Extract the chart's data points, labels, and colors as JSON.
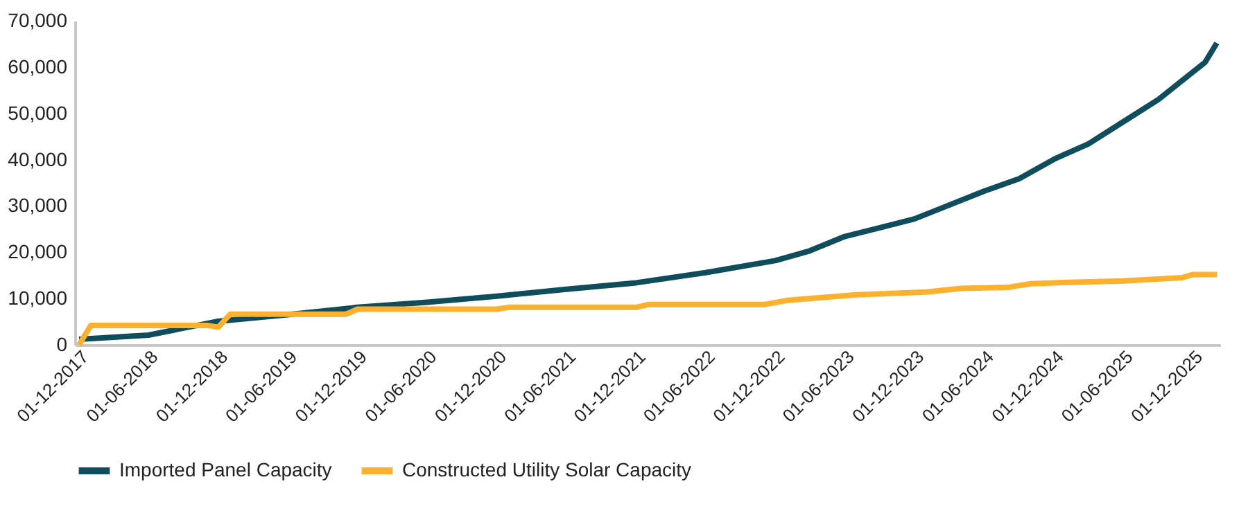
{
  "chart_data": {
    "type": "line",
    "xlim": [
      "2017-11-20",
      "2026-02-10"
    ],
    "xticks": [
      {
        "value": "2017-12-01",
        "label": "01-12-2017"
      },
      {
        "value": "2018-06-01",
        "label": "01-06-2018"
      },
      {
        "value": "2018-12-01",
        "label": "01-12-2018"
      },
      {
        "value": "2019-06-01",
        "label": "01-06-2019"
      },
      {
        "value": "2019-12-01",
        "label": "01-12-2019"
      },
      {
        "value": "2020-06-01",
        "label": "01-06-2020"
      },
      {
        "value": "2020-12-01",
        "label": "01-12-2020"
      },
      {
        "value": "2021-06-01",
        "label": "01-06-2021"
      },
      {
        "value": "2021-12-01",
        "label": "01-12-2021"
      },
      {
        "value": "2022-06-01",
        "label": "01-06-2022"
      },
      {
        "value": "2022-12-01",
        "label": "01-12-2022"
      },
      {
        "value": "2023-06-01",
        "label": "01-06-2023"
      },
      {
        "value": "2023-12-01",
        "label": "01-12-2023"
      },
      {
        "value": "2024-06-01",
        "label": "01-06-2024"
      },
      {
        "value": "2024-12-01",
        "label": "01-12-2024"
      },
      {
        "value": "2025-06-01",
        "label": "01-06-2025"
      },
      {
        "value": "2025-12-01",
        "label": "01-12-2025"
      }
    ],
    "ylim": [
      0,
      70000
    ],
    "yticks": [
      {
        "value": 0,
        "label": "0"
      },
      {
        "value": 10000,
        "label": "10,000"
      },
      {
        "value": 20000,
        "label": "20,000"
      },
      {
        "value": 30000,
        "label": "30,000"
      },
      {
        "value": 40000,
        "label": "40,000"
      },
      {
        "value": 50000,
        "label": "50,000"
      },
      {
        "value": 60000,
        "label": "60,000"
      },
      {
        "value": 70000,
        "label": "70,000"
      }
    ],
    "grid": false,
    "legend": "bottom",
    "marker": "none",
    "line_style": "solid",
    "series": [
      {
        "name": "Imported Panel Capacity",
        "color": "#0f4c5c",
        "x": [
          "2017-12-01",
          "2018-06-01",
          "2018-12-01",
          "2019-06-01",
          "2019-12-01",
          "2020-06-01",
          "2020-12-01",
          "2021-06-01",
          "2021-12-01",
          "2022-06-01",
          "2022-12-01",
          "2023-03-01",
          "2023-06-01",
          "2023-12-01",
          "2024-06-01",
          "2024-09-01",
          "2024-12-01",
          "2025-03-01",
          "2025-06-01",
          "2025-09-01",
          "2025-12-01",
          "2026-01-01",
          "2026-02-01"
        ],
        "values": [
          1200,
          2100,
          5100,
          6500,
          8100,
          9200,
          10500,
          12000,
          13400,
          15600,
          18200,
          20300,
          23400,
          27200,
          33200,
          35900,
          40100,
          43400,
          48200,
          53000,
          59000,
          61000,
          65200
        ]
      },
      {
        "name": "Constructed Utility Solar Capacity",
        "color": "#fbb12e",
        "x": [
          "2017-12-01",
          "2018-01-01",
          "2018-11-01",
          "2018-12-01",
          "2019-01-01",
          "2019-11-01",
          "2019-12-01",
          "2020-12-01",
          "2021-01-01",
          "2021-12-01",
          "2022-01-01",
          "2022-11-01",
          "2023-01-01",
          "2023-04-01",
          "2023-07-01",
          "2023-10-01",
          "2024-01-01",
          "2024-04-01",
          "2024-08-01",
          "2024-10-01",
          "2024-12-01",
          "2025-06-01",
          "2025-11-01",
          "2025-12-01",
          "2026-02-01"
        ],
        "values": [
          0,
          4200,
          4200,
          3800,
          6600,
          6600,
          7700,
          7700,
          8100,
          8100,
          8700,
          8700,
          9600,
          10200,
          10800,
          11100,
          11400,
          12200,
          12400,
          13200,
          13400,
          13800,
          14500,
          15200,
          15200
        ]
      }
    ]
  }
}
